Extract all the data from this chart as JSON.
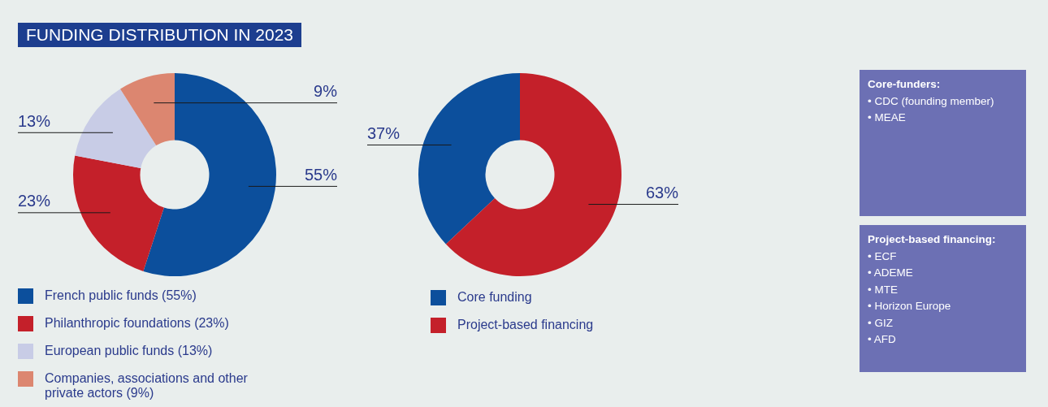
{
  "chart_data": [
    {
      "type": "donut",
      "title": "FUNDING DISTRIBUTION IN 2023",
      "categories": [
        "French public funds (55%)",
        "Philanthropic foundations  (23%)",
        "European public funds (13%)",
        "Companies, associations and other private actors (9%)"
      ],
      "values": [
        55,
        23,
        13,
        9
      ],
      "colors": [
        "#0c4f9c",
        "#c4202a",
        "#c8cce6",
        "#dc8670"
      ],
      "value_labels": [
        "55%",
        "23%",
        "13%",
        "9%"
      ],
      "legend": "bottom left"
    },
    {
      "type": "donut",
      "categories": [
        "Core funding",
        "Project-based financing"
      ],
      "values": [
        37,
        63
      ],
      "colors": [
        "#0c4f9c",
        "#c4202a"
      ],
      "value_labels": [
        "37%",
        "63%"
      ],
      "legend": "bottom left"
    },
    {
      "type": "other",
      "title": "Core-funders:",
      "annotations": [
        "• CDC (founding member)",
        "• MEAE"
      ]
    },
    {
      "type": "other",
      "title": "Project-based financing:",
      "annotations": [
        "• ECF",
        "• ADEME",
        "• MTE",
        "• Horizon Europe",
        "• GIZ",
        "• AFD"
      ]
    }
  ]
}
